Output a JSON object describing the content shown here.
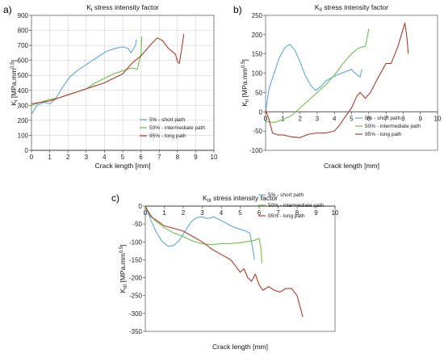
{
  "colors": {
    "short": "#5ba9d6",
    "intermediate": "#6cc24a",
    "long": "#b23a2a"
  },
  "chart_data": [
    {
      "type": "line",
      "panel_label": "a)",
      "title": "K",
      "title_sub": "I",
      "title_rest": " stress intensity factor",
      "xlabel": "Crack length [mm]",
      "ylabel": "K",
      "ylabel_sub": "I",
      "ylabel_rest": " [MPa.mm",
      "ylabel_sup": "0.5",
      "ylabel_end": "]",
      "xlim": [
        0,
        10
      ],
      "ylim": [
        0,
        900
      ],
      "xticks": [
        0,
        1,
        2,
        3,
        4,
        5,
        6,
        7,
        8,
        9,
        10
      ],
      "yticks": [
        0,
        100,
        200,
        300,
        400,
        500,
        600,
        700,
        800,
        900
      ],
      "grid": true,
      "legend": "right",
      "series": [
        {
          "key": "short",
          "name": "5% - short path",
          "color": "#5ba9d6",
          "points": [
            [
              0,
              240
            ],
            [
              0.3,
              300
            ],
            [
              0.7,
              320
            ],
            [
              1.0,
              310
            ],
            [
              1.3,
              340
            ],
            [
              1.7,
              420
            ],
            [
              2.1,
              490
            ],
            [
              2.6,
              540
            ],
            [
              3.1,
              580
            ],
            [
              3.6,
              620
            ],
            [
              4.1,
              660
            ],
            [
              4.6,
              680
            ],
            [
              5.0,
              690
            ],
            [
              5.3,
              680
            ],
            [
              5.45,
              650
            ],
            [
              5.7,
              700
            ],
            [
              5.75,
              740
            ]
          ]
        },
        {
          "key": "intermediate",
          "name": "50% - intermediate path",
          "color": "#6cc24a",
          "points": [
            [
              0,
              300
            ],
            [
              0.5,
              320
            ],
            [
              1.0,
              340
            ],
            [
              1.5,
              350
            ],
            [
              2.0,
              370
            ],
            [
              2.5,
              390
            ],
            [
              3.0,
              410
            ],
            [
              3.5,
              450
            ],
            [
              4.0,
              480
            ],
            [
              4.5,
              510
            ],
            [
              5.0,
              530
            ],
            [
              5.5,
              550
            ],
            [
              5.8,
              540
            ],
            [
              5.9,
              590
            ],
            [
              6.0,
              640
            ],
            [
              6.05,
              760
            ]
          ]
        },
        {
          "key": "long",
          "name": "95% - long path",
          "color": "#b23a2a",
          "points": [
            [
              0,
              310
            ],
            [
              0.5,
              320
            ],
            [
              1.0,
              330
            ],
            [
              1.5,
              350
            ],
            [
              2.0,
              370
            ],
            [
              2.5,
              390
            ],
            [
              3.0,
              410
            ],
            [
              3.5,
              430
            ],
            [
              4.0,
              450
            ],
            [
              4.5,
              480
            ],
            [
              5.0,
              510
            ],
            [
              5.5,
              580
            ],
            [
              6.0,
              630
            ],
            [
              6.5,
              700
            ],
            [
              6.9,
              750
            ],
            [
              7.2,
              730
            ],
            [
              7.5,
              680
            ],
            [
              7.9,
              640
            ],
            [
              8.0,
              590
            ],
            [
              8.1,
              580
            ],
            [
              8.2,
              650
            ],
            [
              8.35,
              775
            ]
          ]
        }
      ]
    },
    {
      "type": "line",
      "panel_label": "b)",
      "title": "K",
      "title_sub": "II",
      "title_rest": " stress intensity factor",
      "xlabel": "Crack length [mm]",
      "ylabel": "K",
      "ylabel_sub": "II",
      "ylabel_rest": " [MPa.mm",
      "ylabel_sup": "0.5",
      "ylabel_end": "]",
      "xlim": [
        0,
        10
      ],
      "ylim": [
        -100,
        250
      ],
      "xticks": [
        0,
        1,
        2,
        3,
        4,
        5,
        6,
        7,
        8,
        9,
        10
      ],
      "yticks": [
        -100,
        -50,
        0,
        50,
        100,
        150,
        200,
        250
      ],
      "grid": false,
      "legend": "right",
      "series": [
        {
          "key": "short",
          "name": "5% - short path",
          "color": "#5ba9d6",
          "points": [
            [
              0,
              0
            ],
            [
              0.2,
              60
            ],
            [
              0.5,
              100
            ],
            [
              0.8,
              140
            ],
            [
              1.1,
              165
            ],
            [
              1.4,
              175
            ],
            [
              1.7,
              160
            ],
            [
              2.0,
              130
            ],
            [
              2.3,
              95
            ],
            [
              2.6,
              70
            ],
            [
              2.9,
              55
            ],
            [
              3.2,
              65
            ],
            [
              3.5,
              80
            ],
            [
              3.9,
              90
            ],
            [
              4.3,
              98
            ],
            [
              4.7,
              105
            ],
            [
              5.0,
              110
            ],
            [
              5.2,
              100
            ],
            [
              5.5,
              90
            ],
            [
              5.6,
              110
            ]
          ]
        },
        {
          "key": "intermediate",
          "name": "50% - intermediate path",
          "color": "#6cc24a",
          "points": [
            [
              0,
              -25
            ],
            [
              0.5,
              -28
            ],
            [
              1.0,
              -20
            ],
            [
              1.5,
              -10
            ],
            [
              2.0,
              10
            ],
            [
              2.5,
              30
            ],
            [
              3.0,
              50
            ],
            [
              3.5,
              70
            ],
            [
              4.0,
              95
            ],
            [
              4.5,
              125
            ],
            [
              5.0,
              150
            ],
            [
              5.4,
              165
            ],
            [
              5.8,
              170
            ],
            [
              5.9,
              190
            ],
            [
              6.0,
              215
            ]
          ]
        },
        {
          "key": "long",
          "name": "95% - long path",
          "color": "#b23a2a",
          "points": [
            [
              0,
              5
            ],
            [
              0.2,
              -20
            ],
            [
              0.4,
              -55
            ],
            [
              0.7,
              -60
            ],
            [
              1.0,
              -60
            ],
            [
              1.5,
              -65
            ],
            [
              2.0,
              -67
            ],
            [
              2.5,
              -58
            ],
            [
              3.0,
              -55
            ],
            [
              3.5,
              -55
            ],
            [
              4.0,
              -50
            ],
            [
              4.3,
              -35
            ],
            [
              4.6,
              -15
            ],
            [
              5.0,
              10
            ],
            [
              5.3,
              40
            ],
            [
              5.5,
              50
            ],
            [
              5.8,
              35
            ],
            [
              6.1,
              50
            ],
            [
              6.5,
              85
            ],
            [
              7.0,
              125
            ],
            [
              7.3,
              125
            ],
            [
              7.7,
              170
            ],
            [
              8.0,
              215
            ],
            [
              8.1,
              230
            ],
            [
              8.2,
              200
            ],
            [
              8.3,
              150
            ]
          ]
        }
      ]
    },
    {
      "type": "line",
      "panel_label": "c)",
      "title": "K",
      "title_sub": "III",
      "title_rest": " stress intensity factor",
      "xlabel": "Crack length [mm]",
      "ylabel": "K",
      "ylabel_sub": "III",
      "ylabel_rest": " [MPa.mm",
      "ylabel_sup": "0.5",
      "ylabel_end": "]",
      "xlim": [
        0,
        10
      ],
      "ylim": [
        -350,
        0
      ],
      "xticks": [
        0,
        1,
        2,
        3,
        4,
        5,
        6,
        7,
        8,
        9,
        10
      ],
      "yticks": [
        -350,
        -300,
        -250,
        -200,
        -150,
        -100,
        -50,
        0
      ],
      "grid": false,
      "legend": "top-right",
      "series": [
        {
          "key": "short",
          "name": "5% - short path",
          "color": "#5ba9d6",
          "points": [
            [
              0,
              0
            ],
            [
              0.3,
              -40
            ],
            [
              0.6,
              -75
            ],
            [
              0.9,
              -100
            ],
            [
              1.2,
              -112
            ],
            [
              1.5,
              -110
            ],
            [
              1.8,
              -95
            ],
            [
              2.1,
              -70
            ],
            [
              2.4,
              -45
            ],
            [
              2.7,
              -32
            ],
            [
              3.0,
              -30
            ],
            [
              3.3,
              -35
            ],
            [
              3.6,
              -30
            ],
            [
              4.0,
              -40
            ],
            [
              4.5,
              -55
            ],
            [
              5.0,
              -65
            ],
            [
              5.3,
              -70
            ],
            [
              5.5,
              -75
            ],
            [
              5.6,
              -100
            ],
            [
              5.7,
              -130
            ],
            [
              5.75,
              -150
            ]
          ]
        },
        {
          "key": "intermediate",
          "name": "50% - intermediate path",
          "color": "#6cc24a",
          "points": [
            [
              0,
              -5
            ],
            [
              0.5,
              -40
            ],
            [
              1.0,
              -60
            ],
            [
              1.5,
              -75
            ],
            [
              2.0,
              -85
            ],
            [
              2.5,
              -98
            ],
            [
              3.0,
              -105
            ],
            [
              3.5,
              -108
            ],
            [
              4.0,
              -105
            ],
            [
              4.5,
              -105
            ],
            [
              5.0,
              -102
            ],
            [
              5.5,
              -98
            ],
            [
              5.8,
              -95
            ],
            [
              6.0,
              -90
            ],
            [
              6.1,
              -120
            ],
            [
              6.15,
              -160
            ]
          ]
        },
        {
          "key": "long",
          "name": "95% - long path",
          "color": "#b23a2a",
          "points": [
            [
              0,
              0
            ],
            [
              0.3,
              -30
            ],
            [
              0.6,
              -40
            ],
            [
              1.0,
              -55
            ],
            [
              1.5,
              -62
            ],
            [
              2.0,
              -70
            ],
            [
              2.5,
              -85
            ],
            [
              3.0,
              -100
            ],
            [
              3.5,
              -120
            ],
            [
              4.0,
              -135
            ],
            [
              4.5,
              -150
            ],
            [
              4.8,
              -170
            ],
            [
              5.0,
              -185
            ],
            [
              5.2,
              -175
            ],
            [
              5.4,
              -200
            ],
            [
              5.6,
              -210
            ],
            [
              5.8,
              -190
            ],
            [
              6.0,
              -220
            ],
            [
              6.2,
              -235
            ],
            [
              6.5,
              -225
            ],
            [
              6.8,
              -235
            ],
            [
              7.1,
              -240
            ],
            [
              7.4,
              -230
            ],
            [
              7.7,
              -230
            ],
            [
              8.0,
              -250
            ],
            [
              8.2,
              -290
            ],
            [
              8.3,
              -310
            ]
          ]
        }
      ]
    }
  ]
}
